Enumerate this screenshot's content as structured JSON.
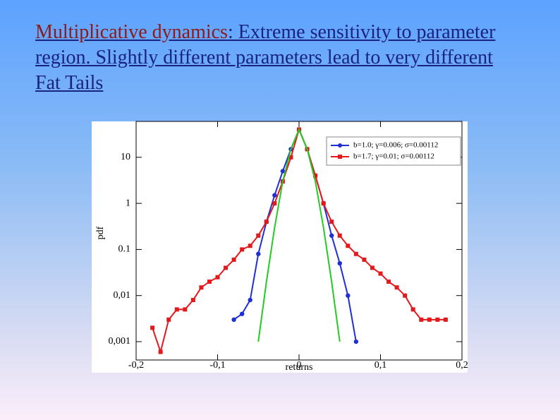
{
  "slide": {
    "title": [
      "Multiplicative dynamics",
      ": Extreme sensitivity to parameter region. Slightly different parameters lead to very different Fat Tails"
    ]
  },
  "chart_data": {
    "type": "line",
    "x_label": "returns",
    "y_label": "pdf",
    "x": [
      -0.18,
      -0.17,
      -0.16,
      -0.15,
      -0.14,
      -0.13,
      -0.12,
      -0.11,
      -0.1,
      -0.09,
      -0.08,
      -0.07,
      -0.06,
      -0.05,
      -0.04,
      -0.03,
      -0.02,
      -0.01,
      0,
      0.01,
      0.02,
      0.03,
      0.04,
      0.05,
      0.06,
      0.07,
      0.08,
      0.09,
      0.1,
      0.11,
      0.12,
      0.13,
      0.14,
      0.15,
      0.16,
      0.17,
      0.18
    ],
    "series": [
      {
        "name": "b=1.0; γ=0.006; σ=0.00112",
        "color": "#1f2fd6",
        "marker": "circle",
        "values": [
          null,
          null,
          null,
          null,
          null,
          null,
          null,
          null,
          null,
          null,
          0.003,
          0.004,
          0.008,
          0.08,
          0.4,
          1.5,
          5,
          15,
          40,
          15,
          4,
          1.0,
          0.2,
          0.05,
          0.01,
          0.001,
          null,
          null,
          null,
          null,
          null,
          null,
          null,
          null,
          null,
          null,
          null
        ]
      },
      {
        "name": "b=1.7; γ=0.01; σ=0.00112",
        "color": "#e3191c",
        "marker": "square",
        "values": [
          0.002,
          0.0006,
          0.003,
          0.005,
          0.005,
          0.008,
          0.015,
          0.02,
          0.025,
          0.04,
          0.06,
          0.1,
          0.12,
          0.2,
          0.4,
          1.0,
          3,
          10,
          40,
          15,
          4,
          1.0,
          0.4,
          0.2,
          0.12,
          0.08,
          0.06,
          0.04,
          0.03,
          0.02,
          0.015,
          0.01,
          0.005,
          0.003,
          0.003,
          0.003,
          0.003
        ]
      },
      {
        "color": "#22cc22",
        "values": [
          null,
          null,
          null,
          null,
          null,
          null,
          null,
          null,
          null,
          null,
          null,
          null,
          null,
          0.001,
          0.02,
          0.3,
          3,
          15,
          40,
          15,
          3,
          0.3,
          0.02,
          0.001,
          null,
          null,
          null,
          null,
          null,
          null,
          null,
          null,
          null,
          null,
          null,
          null,
          null
        ]
      }
    ],
    "xlim": [
      -0.2,
      0.2
    ],
    "xticks": [
      {
        "value": -0.2,
        "label": "-0,2"
      },
      {
        "value": -0.1,
        "label": "-0,1"
      },
      0,
      {
        "value": 0.1,
        "label": "0,1"
      },
      {
        "value": 0.2,
        "label": "0,2"
      }
    ],
    "ylim": [
      0.0004,
      60
    ],
    "yscale": "log",
    "yticks": [
      {
        "value": 0.001,
        "label": "0,001"
      },
      {
        "value": 0.01,
        "label": "0,01"
      },
      {
        "value": 0.1,
        "label": "0.1"
      },
      1,
      10
    ],
    "legend": "upper right"
  }
}
